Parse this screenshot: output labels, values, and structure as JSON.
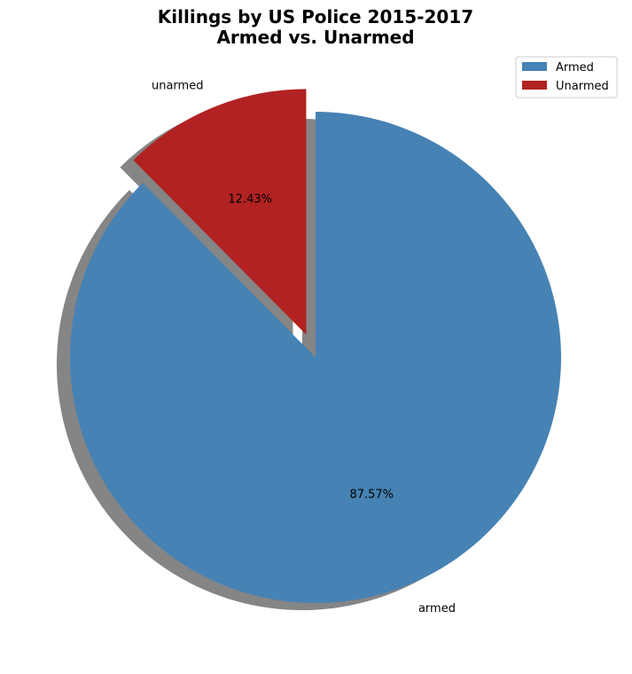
{
  "chart_data": {
    "type": "pie",
    "title_lines": [
      "Killings by US Police 2015-2017",
      "Armed vs. Unarmed"
    ],
    "slices": [
      {
        "label": "armed",
        "legend": "Armed",
        "value": 87.57,
        "pct_text": "87.57%",
        "color": "#4682b4",
        "explode": false
      },
      {
        "label": "unarmed",
        "legend": "Unarmed",
        "value": 12.43,
        "pct_text": "12.43%",
        "color": "#b22222",
        "explode": true
      }
    ],
    "start_angle": 90,
    "direction": "clockwise",
    "shadow": true,
    "shadow_color": "#858585",
    "legend_position": "top-right"
  }
}
